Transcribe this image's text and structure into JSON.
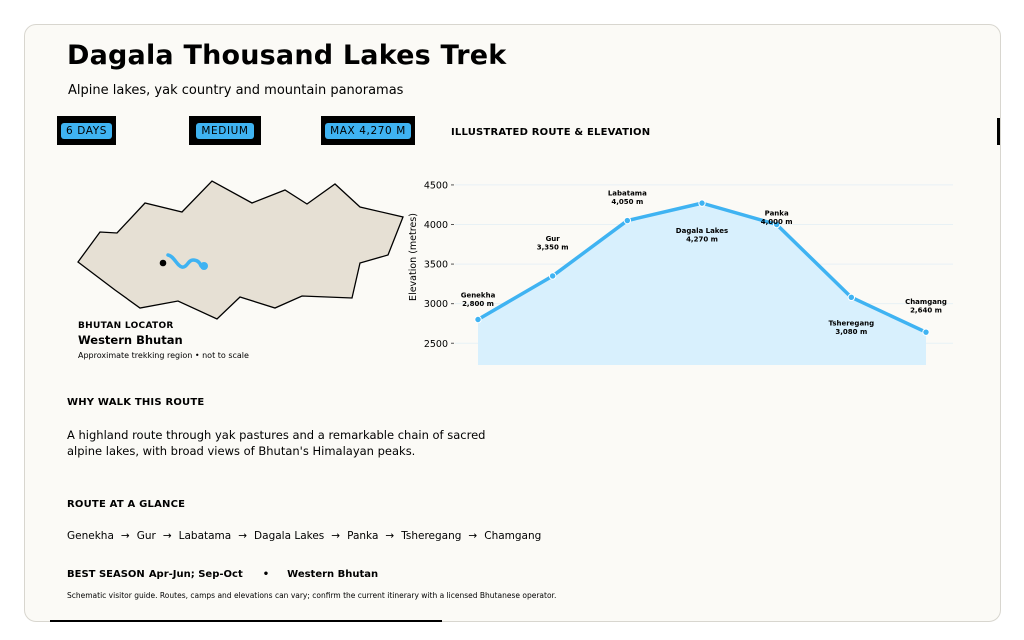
{
  "header": {
    "title": "Dagala Thousand Lakes Trek",
    "subtitle": "Alpine lakes, yak country and mountain panoramas"
  },
  "badges": {
    "days": "6 DAYS",
    "difficulty": "MEDIUM",
    "max_altitude": "MAX 4,270 M"
  },
  "route_section": {
    "heading": "ILLUSTRATED ROUTE & ELEVATION"
  },
  "locator": {
    "label": "BHUTAN LOCATOR",
    "region": "Western Bhutan",
    "note": "Approximate trekking region • not to scale"
  },
  "why": {
    "heading": "WHY WALK THIS ROUTE",
    "text": "A highland route through yak pastures and a remarkable chain of sacred alpine lakes, with broad views of Bhutan's Himalayan peaks."
  },
  "glance": {
    "heading": "ROUTE AT A GLANCE",
    "stops": [
      "Genekha",
      "Gur",
      "Labatama",
      "Dagala Lakes",
      "Panka",
      "Tsheregang",
      "Chamgang"
    ],
    "arrow": "→"
  },
  "footer": {
    "season_label": "BEST SEASON",
    "season_value": "Apr-Jun; Sep-Oct",
    "separator": "•",
    "region": "Western Bhutan",
    "disclaimer": "Schematic visitor guide. Routes, camps and elevations can vary; confirm the current itinerary with a licensed Bhutanese operator."
  },
  "colors": {
    "accent": "#3fb3f2",
    "area_fill": "#d8f0fd",
    "map_fill": "#e6e0d4",
    "card_bg": "#fbfaf6"
  },
  "chart_data": {
    "type": "area",
    "ylabel": "Elevation (metres)",
    "ylim": [
      2200,
      4600
    ],
    "yticks": [
      "2500",
      "3000",
      "3500",
      "4000",
      "4500"
    ],
    "grid": true,
    "points": [
      {
        "name": "Genekha",
        "value_label": "2,800 m",
        "y": 2800
      },
      {
        "name": "Gur",
        "value_label": "3,350 m",
        "y": 3350
      },
      {
        "name": "Labatama",
        "value_label": "4,050 m",
        "y": 4050
      },
      {
        "name": "Dagala Lakes",
        "value_label": "4,270 m",
        "y": 4270
      },
      {
        "name": "Panka",
        "value_label": "4,000 m",
        "y": 4000
      },
      {
        "name": "Tsheregang",
        "value_label": "3,080 m",
        "y": 3080
      },
      {
        "name": "Chamgang",
        "value_label": "2,640 m",
        "y": 2640
      }
    ]
  }
}
